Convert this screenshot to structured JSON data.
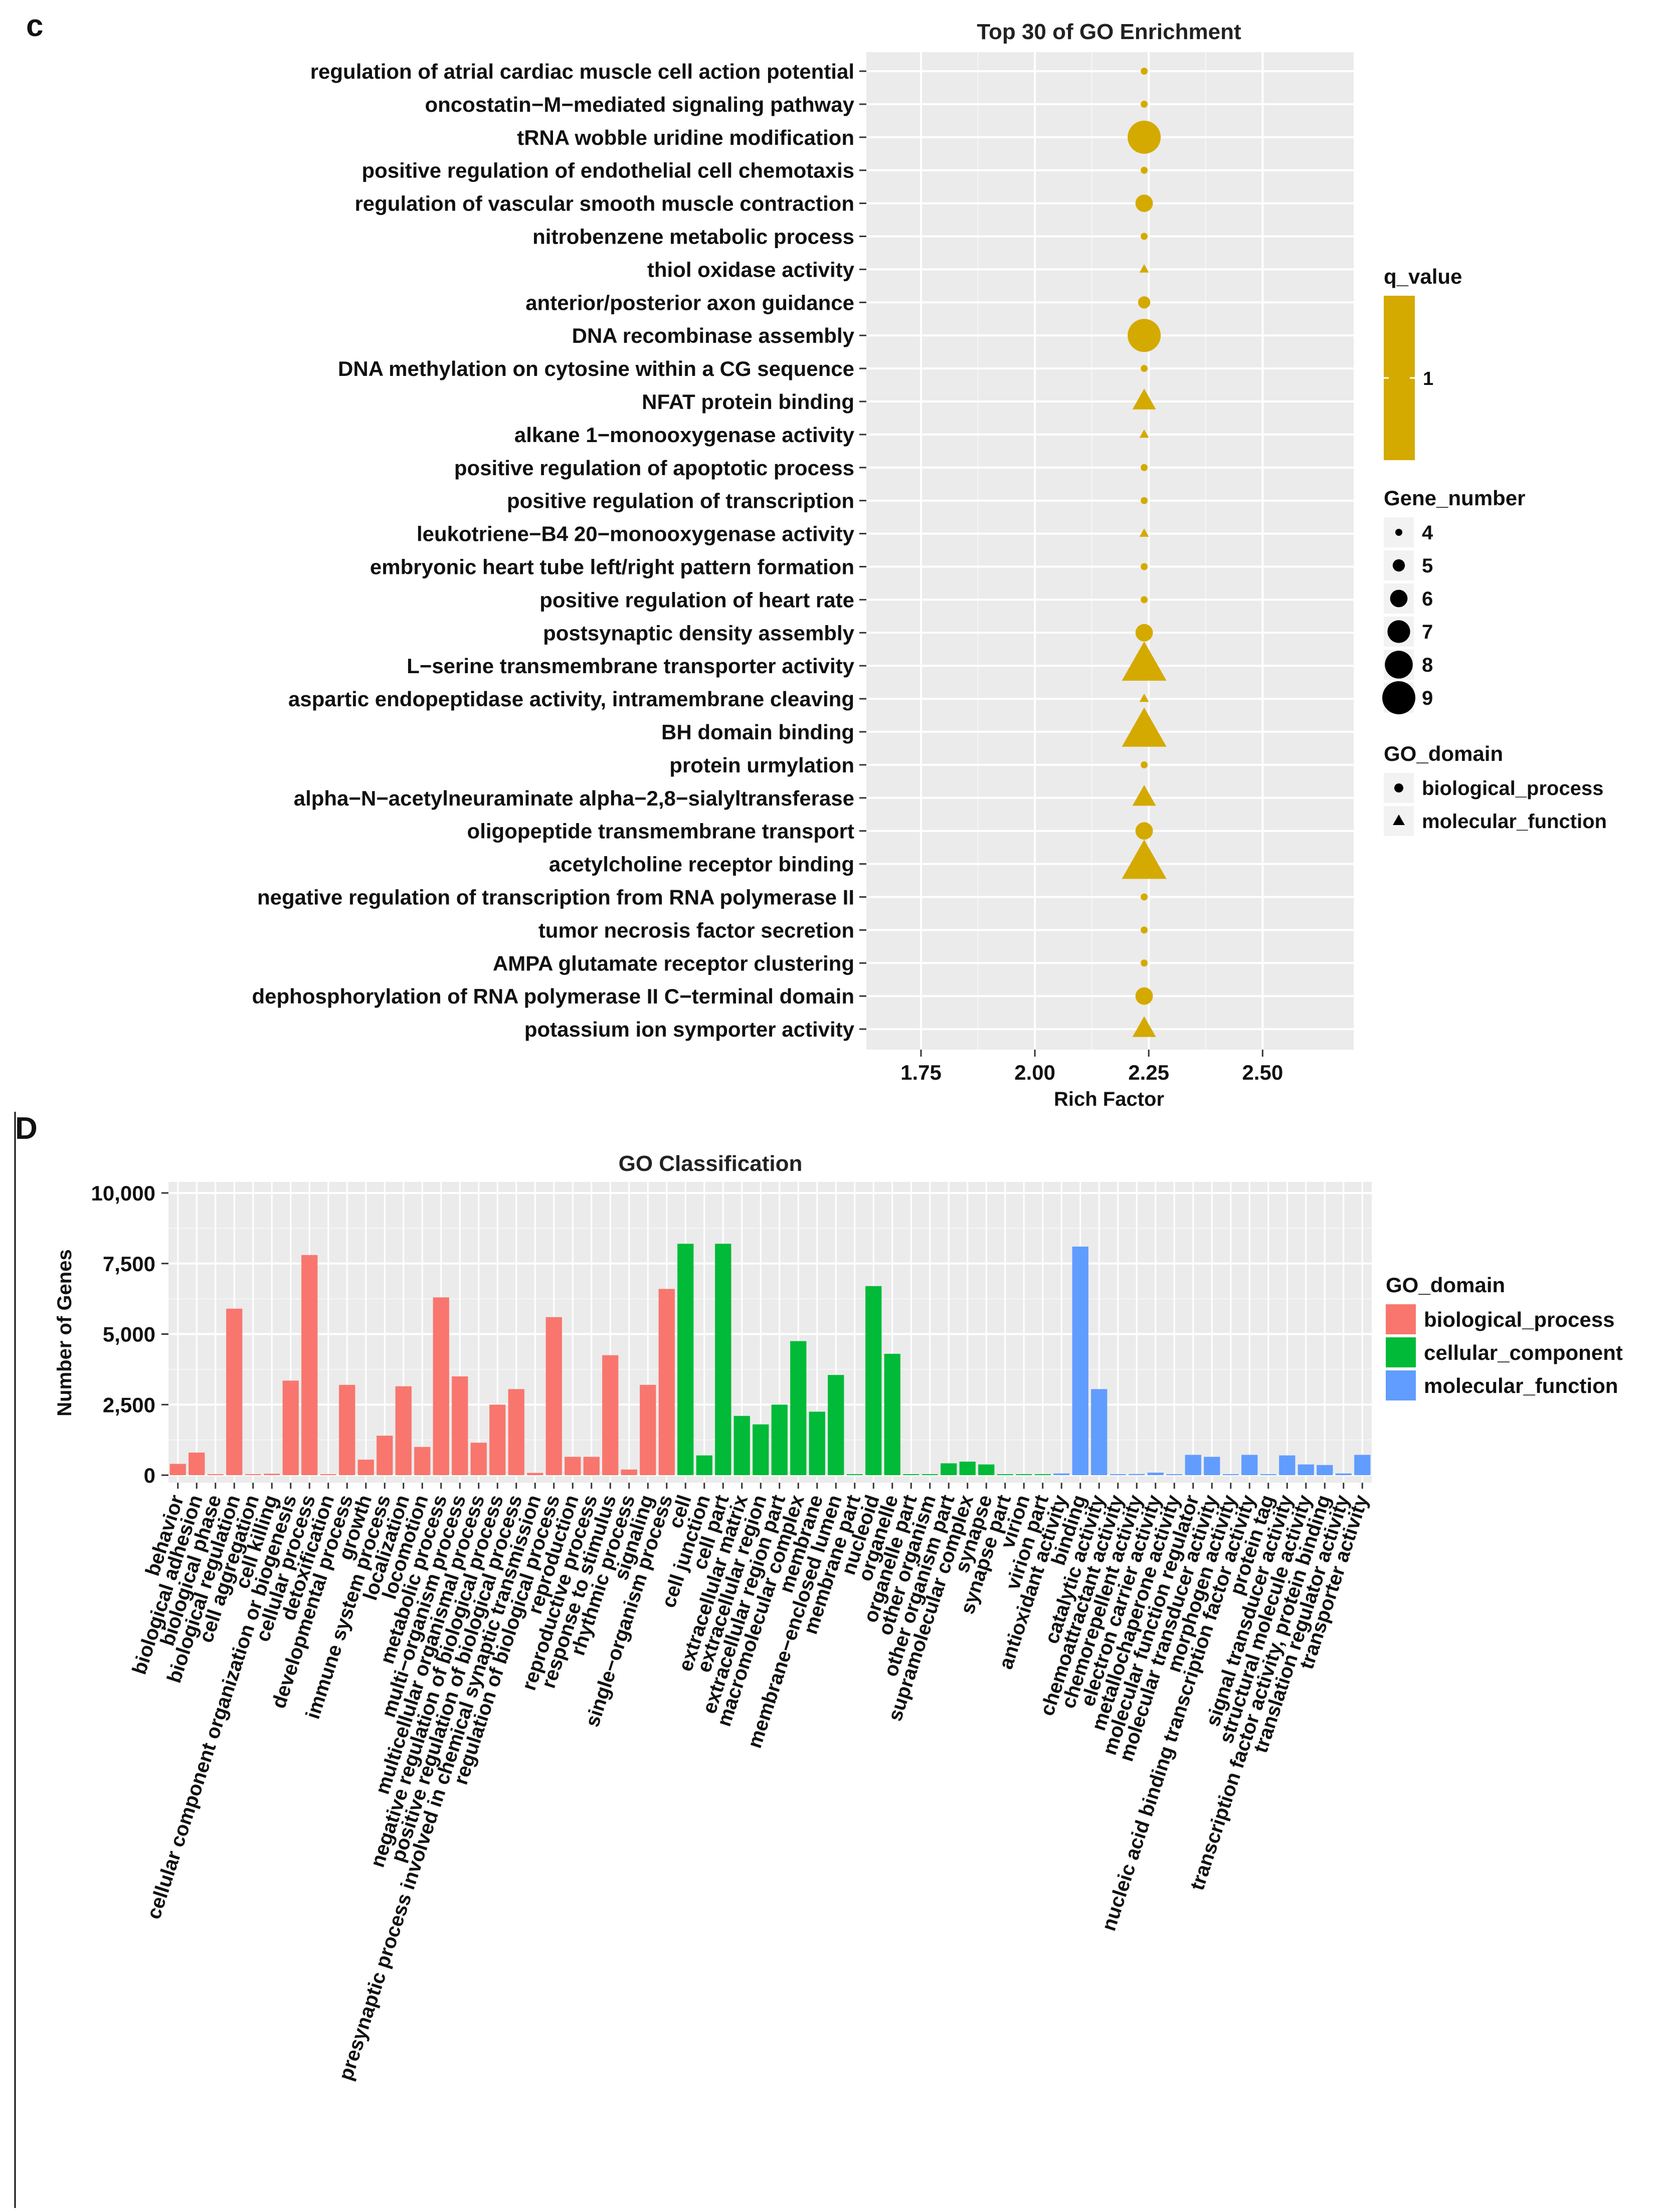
{
  "panel_c": {
    "label": "c",
    "chart_data": {
      "type": "scatter",
      "title": "Top 30 of GO Enrichment",
      "xlabel": "Rich Factor",
      "ylabel": "",
      "xlim": [
        1.63,
        2.7
      ],
      "xticks": [
        1.75,
        2.0,
        2.25,
        2.5
      ],
      "xtick_labels": [
        "1.75",
        "2.00",
        "2.25",
        "2.50"
      ],
      "color": "#d4aa00",
      "terms": [
        {
          "term": "regulation of atrial cardiac muscle cell action potential",
          "rich_factor": 2.24,
          "gene_number": 4,
          "domain": "biological_process"
        },
        {
          "term": "oncostatin−M−mediated signaling pathway",
          "rich_factor": 2.24,
          "gene_number": 4,
          "domain": "biological_process"
        },
        {
          "term": "tRNA wobble uridine modification",
          "rich_factor": 2.24,
          "gene_number": 9,
          "domain": "biological_process"
        },
        {
          "term": "positive regulation of endothelial cell chemotaxis",
          "rich_factor": 2.24,
          "gene_number": 4,
          "domain": "biological_process"
        },
        {
          "term": "regulation of vascular smooth muscle contraction",
          "rich_factor": 2.24,
          "gene_number": 6,
          "domain": "biological_process"
        },
        {
          "term": "nitrobenzene metabolic process",
          "rich_factor": 2.24,
          "gene_number": 4,
          "domain": "biological_process"
        },
        {
          "term": "thiol oxidase activity",
          "rich_factor": 2.24,
          "gene_number": 4,
          "domain": "molecular_function"
        },
        {
          "term": "anterior/posterior axon guidance",
          "rich_factor": 2.24,
          "gene_number": 5,
          "domain": "biological_process"
        },
        {
          "term": "DNA recombinase assembly",
          "rich_factor": 2.24,
          "gene_number": 9,
          "domain": "biological_process"
        },
        {
          "term": "DNA methylation on cytosine within a CG sequence",
          "rich_factor": 2.24,
          "gene_number": 4,
          "domain": "biological_process"
        },
        {
          "term": "NFAT protein binding",
          "rich_factor": 2.24,
          "gene_number": 6,
          "domain": "molecular_function"
        },
        {
          "term": "alkane 1−monooxygenase activity",
          "rich_factor": 2.24,
          "gene_number": 4,
          "domain": "molecular_function"
        },
        {
          "term": "positive regulation of apoptotic process",
          "rich_factor": 2.24,
          "gene_number": 4,
          "domain": "biological_process"
        },
        {
          "term": "positive regulation of transcription",
          "rich_factor": 2.24,
          "gene_number": 4,
          "domain": "biological_process"
        },
        {
          "term": "leukotriene−B4 20−monooxygenase activity",
          "rich_factor": 2.24,
          "gene_number": 4,
          "domain": "molecular_function"
        },
        {
          "term": "embryonic heart tube left/right pattern formation",
          "rich_factor": 2.24,
          "gene_number": 4,
          "domain": "biological_process"
        },
        {
          "term": "positive regulation of heart rate",
          "rich_factor": 2.24,
          "gene_number": 4,
          "domain": "biological_process"
        },
        {
          "term": "postsynaptic density assembly",
          "rich_factor": 2.24,
          "gene_number": 6,
          "domain": "biological_process"
        },
        {
          "term": "L−serine transmembrane transporter activity",
          "rich_factor": 2.24,
          "gene_number": 9,
          "domain": "molecular_function"
        },
        {
          "term": "aspartic endopeptidase activity, intramembrane cleaving",
          "rich_factor": 2.24,
          "gene_number": 4,
          "domain": "molecular_function"
        },
        {
          "term": "BH domain binding",
          "rich_factor": 2.24,
          "gene_number": 9,
          "domain": "molecular_function"
        },
        {
          "term": "protein urmylation",
          "rich_factor": 2.24,
          "gene_number": 4,
          "domain": "biological_process"
        },
        {
          "term": "alpha−N−acetylneuraminate alpha−2,8−sialyltransferase",
          "rich_factor": 2.24,
          "gene_number": 6,
          "domain": "molecular_function"
        },
        {
          "term": "oligopeptide transmembrane transport",
          "rich_factor": 2.24,
          "gene_number": 6,
          "domain": "biological_process"
        },
        {
          "term": "acetylcholine receptor binding",
          "rich_factor": 2.24,
          "gene_number": 9,
          "domain": "molecular_function"
        },
        {
          "term": "negative regulation of transcription from RNA polymerase II",
          "rich_factor": 2.24,
          "gene_number": 4,
          "domain": "biological_process"
        },
        {
          "term": "tumor necrosis factor secretion",
          "rich_factor": 2.24,
          "gene_number": 4,
          "domain": "biological_process"
        },
        {
          "term": "AMPA glutamate receptor clustering",
          "rich_factor": 2.24,
          "gene_number": 4,
          "domain": "biological_process"
        },
        {
          "term": "dephosphorylation of RNA polymerase II C−terminal domain",
          "rich_factor": 2.24,
          "gene_number": 6,
          "domain": "biological_process"
        },
        {
          "term": "potassium ion symporter activity",
          "rich_factor": 2.24,
          "gene_number": 6,
          "domain": "molecular_function"
        }
      ],
      "legend": {
        "qvalue_title": "q_value",
        "qvalue_label": "1",
        "size_title": "Gene_number",
        "size_values": [
          4,
          5,
          6,
          7,
          8,
          9
        ],
        "shape_title": "GO_domain",
        "shape_items": [
          {
            "label": "biological_process",
            "shape": "circle"
          },
          {
            "label": "molecular_function",
            "shape": "triangle"
          }
        ]
      }
    }
  },
  "panel_d": {
    "label": "D",
    "chart_data": {
      "type": "bar",
      "title": "GO Classification",
      "xlabel": "",
      "ylabel": "Number of Genes",
      "ylim": [
        0,
        10500
      ],
      "yticks": [
        0,
        2500,
        5000,
        7500,
        10000
      ],
      "ytick_labels": [
        "0",
        "2,500",
        "5,000",
        "7,500",
        "10,000"
      ],
      "legend_title": "GO_domain",
      "domains": [
        {
          "name": "biological_process",
          "color": "#f8766d"
        },
        {
          "name": "cellular_component",
          "color": "#00ba38"
        },
        {
          "name": "molecular_function",
          "color": "#619cff"
        }
      ],
      "bars": [
        {
          "category": "behavior",
          "value": 400,
          "domain": "biological_process"
        },
        {
          "category": "biological adhesion",
          "value": 800,
          "domain": "biological_process"
        },
        {
          "category": "biological phase",
          "value": 5,
          "domain": "biological_process"
        },
        {
          "category": "biological regulation",
          "value": 5900,
          "domain": "biological_process"
        },
        {
          "category": "cell aggregation",
          "value": 5,
          "domain": "biological_process"
        },
        {
          "category": "cell killing",
          "value": 50,
          "domain": "biological_process"
        },
        {
          "category": "cellular component organization or biogenesis",
          "value": 3350,
          "domain": "biological_process"
        },
        {
          "category": "cellular process",
          "value": 7800,
          "domain": "biological_process"
        },
        {
          "category": "detoxification",
          "value": 30,
          "domain": "biological_process"
        },
        {
          "category": "developmental process",
          "value": 3200,
          "domain": "biological_process"
        },
        {
          "category": "growth",
          "value": 550,
          "domain": "biological_process"
        },
        {
          "category": "immune system process",
          "value": 1400,
          "domain": "biological_process"
        },
        {
          "category": "localization",
          "value": 3150,
          "domain": "biological_process"
        },
        {
          "category": "locomotion",
          "value": 1000,
          "domain": "biological_process"
        },
        {
          "category": "metabolic process",
          "value": 6300,
          "domain": "biological_process"
        },
        {
          "category": "multi−organism process",
          "value": 3500,
          "domain": "biological_process"
        },
        {
          "category": "multicellular organismal process",
          "value": 1150,
          "domain": "biological_process"
        },
        {
          "category": "negative regulation of biological process",
          "value": 2500,
          "domain": "biological_process"
        },
        {
          "category": "positive regulation of biological process",
          "value": 3050,
          "domain": "biological_process"
        },
        {
          "category": "presynaptic process involved in chemical synaptic transmission",
          "value": 80,
          "domain": "biological_process"
        },
        {
          "category": "regulation of biological process",
          "value": 5600,
          "domain": "biological_process"
        },
        {
          "category": "reproduction",
          "value": 650,
          "domain": "biological_process"
        },
        {
          "category": "reproductive process",
          "value": 650,
          "domain": "biological_process"
        },
        {
          "category": "response to stimulus",
          "value": 4250,
          "domain": "biological_process"
        },
        {
          "category": "rhythmic process",
          "value": 200,
          "domain": "biological_process"
        },
        {
          "category": "signaling",
          "value": 3200,
          "domain": "biological_process"
        },
        {
          "category": "single−organism process",
          "value": 6600,
          "domain": "biological_process"
        },
        {
          "category": "cell",
          "value": 8200,
          "domain": "cellular_component"
        },
        {
          "category": "cell junction",
          "value": 700,
          "domain": "cellular_component"
        },
        {
          "category": "cell part",
          "value": 8200,
          "domain": "cellular_component"
        },
        {
          "category": "extracellular matrix",
          "value": 2100,
          "domain": "cellular_component"
        },
        {
          "category": "extracellular region",
          "value": 1800,
          "domain": "cellular_component"
        },
        {
          "category": "extracellular region part",
          "value": 2500,
          "domain": "cellular_component"
        },
        {
          "category": "macromolecular complex",
          "value": 4750,
          "domain": "cellular_component"
        },
        {
          "category": "membrane",
          "value": 2250,
          "domain": "cellular_component"
        },
        {
          "category": "membrane−enclosed lumen",
          "value": 3550,
          "domain": "cellular_component"
        },
        {
          "category": "membrane part",
          "value": 30,
          "domain": "cellular_component"
        },
        {
          "category": "nucleoid",
          "value": 6700,
          "domain": "cellular_component"
        },
        {
          "category": "organelle",
          "value": 4300,
          "domain": "cellular_component"
        },
        {
          "category": "organelle part",
          "value": 10,
          "domain": "cellular_component"
        },
        {
          "category": "other organism",
          "value": 10,
          "domain": "cellular_component"
        },
        {
          "category": "other organism part",
          "value": 420,
          "domain": "cellular_component"
        },
        {
          "category": "supramolecular complex",
          "value": 480,
          "domain": "cellular_component"
        },
        {
          "category": "synapse",
          "value": 380,
          "domain": "cellular_component"
        },
        {
          "category": "synapse part",
          "value": 5,
          "domain": "cellular_component"
        },
        {
          "category": "virion",
          "value": 5,
          "domain": "cellular_component"
        },
        {
          "category": "virion part",
          "value": 5,
          "domain": "cellular_component"
        },
        {
          "category": "antioxidant activity",
          "value": 60,
          "domain": "molecular_function"
        },
        {
          "category": "binding",
          "value": 8100,
          "domain": "molecular_function"
        },
        {
          "category": "catalytic activity",
          "value": 3050,
          "domain": "molecular_function"
        },
        {
          "category": "chemoattractant activity",
          "value": 5,
          "domain": "molecular_function"
        },
        {
          "category": "chemorepellent activity",
          "value": 40,
          "domain": "molecular_function"
        },
        {
          "category": "electron carrier activity",
          "value": 90,
          "domain": "molecular_function"
        },
        {
          "category": "metallochaperone activity",
          "value": 5,
          "domain": "molecular_function"
        },
        {
          "category": "molecular function regulator",
          "value": 720,
          "domain": "molecular_function"
        },
        {
          "category": "molecular transducer activity",
          "value": 650,
          "domain": "molecular_function"
        },
        {
          "category": "morphogen activity",
          "value": 5,
          "domain": "molecular_function"
        },
        {
          "category": "nucleic acid binding transcription factor activity",
          "value": 720,
          "domain": "molecular_function"
        },
        {
          "category": "protein tag",
          "value": 5,
          "domain": "molecular_function"
        },
        {
          "category": "signal transducer activity",
          "value": 700,
          "domain": "molecular_function"
        },
        {
          "category": "structural molecule activity",
          "value": 380,
          "domain": "molecular_function"
        },
        {
          "category": "transcription factor activity, protein binding",
          "value": 360,
          "domain": "molecular_function"
        },
        {
          "category": "translation regulator activity",
          "value": 60,
          "domain": "molecular_function"
        },
        {
          "category": "transporter activity",
          "value": 720,
          "domain": "molecular_function"
        }
      ]
    }
  }
}
